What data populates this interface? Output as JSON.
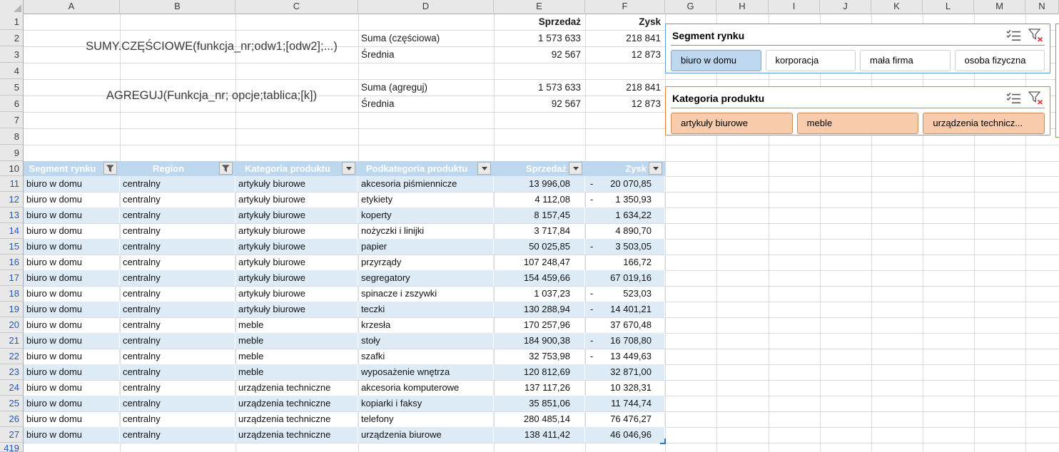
{
  "grid": {
    "column_letters": [
      "A",
      "B",
      "C",
      "D",
      "E",
      "F",
      "G",
      "H",
      "I",
      "J",
      "K",
      "L",
      "M",
      "N"
    ],
    "row_numbers": [
      "1",
      "2",
      "3",
      "4",
      "5",
      "6",
      "7",
      "8",
      "9",
      "10",
      "11",
      "12",
      "13",
      "14",
      "15",
      "16",
      "17",
      "18",
      "19",
      "20",
      "21",
      "22",
      "23",
      "24",
      "25",
      "26",
      "27"
    ],
    "first_filtered_row": 11,
    "partial_row_number": "419"
  },
  "formulas": {
    "subtotal": "SUMY.CZĘŚCIOWE(funkcja_nr;odw1;[odw2];...)",
    "aggregate": "AGREGUJ(Funkcja_nr; opcje;tablica;[k])"
  },
  "summary": {
    "sales_header": "Sprzedaż",
    "profit_header": "Zysk",
    "rows": [
      {
        "label": "Suma (częściowa)",
        "sales": "1 573 633",
        "profit": "218 841"
      },
      {
        "label": "Średnia",
        "sales": "92 567",
        "profit": "12 873"
      },
      {
        "label": "Suma (agreguj)",
        "sales": "1 573 633",
        "profit": "218 841"
      },
      {
        "label": "Średnia",
        "sales": "92 567",
        "profit": "12 873"
      }
    ]
  },
  "slicers": [
    {
      "title": "Segment rynku",
      "accent": "#5B9BD5",
      "selected_fill": "#BDD7EE",
      "selected_border": "#8BA7C2",
      "unselected_fill": "#FFFFFF",
      "unselected_border": "#CDD1D6",
      "icons": [
        "multi-select-icon",
        "clear-filter-icon"
      ],
      "items": [
        {
          "label": "biuro w domu",
          "selected": true
        },
        {
          "label": "korporacja",
          "selected": false
        },
        {
          "label": "mała firma",
          "selected": false
        },
        {
          "label": "osoba fizyczna",
          "selected": false
        }
      ]
    },
    {
      "title": "Kategoria produktu",
      "accent": "#ED7D31",
      "selected_fill": "#F8CBAD",
      "selected_border": "#CF8B57",
      "unselected_fill": "#FFFFFF",
      "unselected_border": "#CDD1D6",
      "icons": [
        "multi-select-icon",
        "clear-filter-icon"
      ],
      "items": [
        {
          "label": "artykuły biurowe",
          "selected": true
        },
        {
          "label": "meble",
          "selected": true
        },
        {
          "label": "urządzenia technicz...",
          "selected": true
        }
      ]
    }
  ],
  "edge_slicer": {
    "accent": "#70AD47"
  },
  "table": {
    "header_bg": "#BDD7EE",
    "header_text_color": "#FFFFFF",
    "band_color": "#DDEBF7",
    "filtered_row_number_color": "#2457C5",
    "headers": [
      {
        "label": "Segment rynku",
        "filter": "funnel"
      },
      {
        "label": "Region",
        "filter": "funnel"
      },
      {
        "label": "Kategoria produktu",
        "filter": "arrow"
      },
      {
        "label": "Podkategoria produktu",
        "filter": "arrow"
      },
      {
        "label": "Sprzedaż",
        "filter": "arrow"
      },
      {
        "label": "Zysk",
        "filter": "arrow"
      }
    ],
    "rows": [
      [
        "biuro w domu",
        "centralny",
        "artykuły biurowe",
        "akcesoria piśmiennicze",
        "13 996,08",
        "-20 070,85"
      ],
      [
        "biuro w domu",
        "centralny",
        "artykuły biurowe",
        "etykiety",
        "4 112,08",
        "-1 350,93"
      ],
      [
        "biuro w domu",
        "centralny",
        "artykuły biurowe",
        "koperty",
        "8 157,45",
        "1 634,22"
      ],
      [
        "biuro w domu",
        "centralny",
        "artykuły biurowe",
        "nożyczki i linijki",
        "3 717,84",
        "4 890,70"
      ],
      [
        "biuro w domu",
        "centralny",
        "artykuły biurowe",
        "papier",
        "50 025,85",
        "-3 503,05"
      ],
      [
        "biuro w domu",
        "centralny",
        "artykuły biurowe",
        "przyrządy",
        "107 248,47",
        "166,72"
      ],
      [
        "biuro w domu",
        "centralny",
        "artykuły biurowe",
        "segregatory",
        "154 459,66",
        "67 019,16"
      ],
      [
        "biuro w domu",
        "centralny",
        "artykuły biurowe",
        "spinacze i zszywki",
        "1 037,23",
        "-523,03"
      ],
      [
        "biuro w domu",
        "centralny",
        "artykuły biurowe",
        "teczki",
        "130 288,94",
        "-14 401,21"
      ],
      [
        "biuro w domu",
        "centralny",
        "meble",
        "krzesła",
        "170 257,96",
        "37 670,48"
      ],
      [
        "biuro w domu",
        "centralny",
        "meble",
        "stoły",
        "184 900,38",
        "-16 708,80"
      ],
      [
        "biuro w domu",
        "centralny",
        "meble",
        "szafki",
        "32 753,98",
        "-13 449,63"
      ],
      [
        "biuro w domu",
        "centralny",
        "meble",
        "wyposażenie wnętrza",
        "120 812,69",
        "32 871,00"
      ],
      [
        "biuro w domu",
        "centralny",
        "urządzenia techniczne",
        "akcesoria komputerowe",
        "137 117,26",
        "10 328,31"
      ],
      [
        "biuro w domu",
        "centralny",
        "urządzenia techniczne",
        "kopiarki i faksy",
        "35 851,06",
        "11 744,74"
      ],
      [
        "biuro w domu",
        "centralny",
        "urządzenia techniczne",
        "telefony",
        "280 485,14",
        "76 476,27"
      ],
      [
        "biuro w domu",
        "centralny",
        "urządzenia techniczne",
        "urządzenia biurowe",
        "138 411,42",
        "46 046,96"
      ]
    ]
  }
}
